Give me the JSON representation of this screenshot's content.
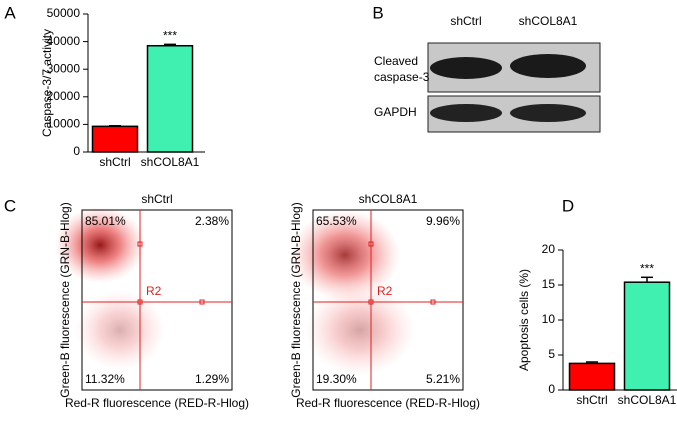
{
  "chart_data": [
    {
      "type": "bar",
      "panel": "A",
      "ylabel": "Caspase-3/7 activity",
      "categories": [
        "shCtrl",
        "shCOL8A1"
      ],
      "values": [
        9300,
        38500
      ],
      "errors": [
        200,
        500
      ],
      "colors": [
        "#ff0000",
        "#3ff0b0"
      ],
      "ylim": [
        0,
        50000
      ],
      "yticks": [
        0,
        10000,
        20000,
        30000,
        40000,
        50000
      ],
      "annotation": "***"
    },
    {
      "type": "bar",
      "panel": "D",
      "ylabel": "Apoptosis cells (%)",
      "categories": [
        "shCtrl",
        "shCOL8A1"
      ],
      "values": [
        3.8,
        15.4
      ],
      "errors": [
        0.2,
        0.7
      ],
      "colors": [
        "#ff0000",
        "#3ff0b0"
      ],
      "ylim": [
        0,
        20
      ],
      "yticks": [
        0,
        5,
        10,
        15,
        20
      ],
      "annotation": "***"
    }
  ],
  "blot": {
    "panel": "B",
    "lanes": [
      "shCtrl",
      "shCOL8A1"
    ],
    "rows": [
      [
        "Cleaved",
        "caspase-3"
      ],
      [
        "GAPDH"
      ]
    ]
  },
  "flow": {
    "panel": "C",
    "xlabel": "Red-R fluorescence (RED-R-Hlog)",
    "ylabel": "Green-B fluorescence (GRN-B-Hlog)",
    "region": "R2",
    "plots": [
      {
        "title": "shCtrl",
        "quadrants": [
          "85.01%",
          "2.38%",
          "11.32%",
          "1.29%"
        ]
      },
      {
        "title": "shCOL8A1",
        "quadrants": [
          "65.53%",
          "9.96%",
          "19.30%",
          "5.21%"
        ]
      }
    ]
  }
}
